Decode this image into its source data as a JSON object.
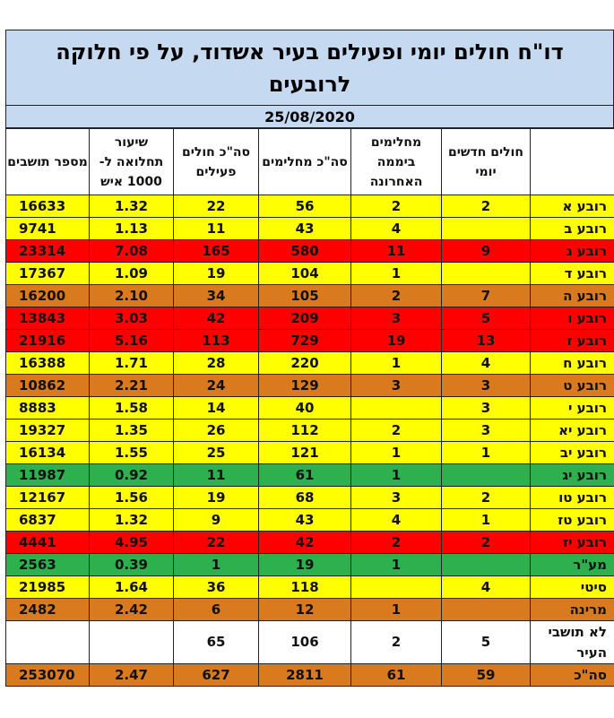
{
  "report": {
    "title": "דו\"ח חולים יומי ופעילים בעיר אשדוד, על פי חלוקה לרובעים",
    "date": "25/08/2020"
  },
  "columns": [
    "",
    "חולים חדשים יומי",
    "מחלימים ביממה האחרונה",
    "סה\"כ מחלימים",
    "סה\"כ חולים פעילים",
    "שיעור תחלואה ל- 1000 איש",
    "מספר תושבים"
  ],
  "rows": [
    {
      "area": "רובע א",
      "new": "2",
      "recovered_day": "2",
      "recovered_total": "56",
      "active": "22",
      "rate": "1.32",
      "residents": "16633",
      "color": "yellow"
    },
    {
      "area": "רובע ב",
      "new": "",
      "recovered_day": "4",
      "recovered_total": "43",
      "active": "11",
      "rate": "1.13",
      "residents": "9741",
      "color": "yellow"
    },
    {
      "area": "רובע ג",
      "new": "9",
      "recovered_day": "11",
      "recovered_total": "580",
      "active": "165",
      "rate": "7.08",
      "residents": "23314",
      "color": "red"
    },
    {
      "area": "רובע ד",
      "new": "",
      "recovered_day": "1",
      "recovered_total": "104",
      "active": "19",
      "rate": "1.09",
      "residents": "17367",
      "color": "yellow"
    },
    {
      "area": "רובע ה",
      "new": "7",
      "recovered_day": "2",
      "recovered_total": "105",
      "active": "34",
      "rate": "2.10",
      "residents": "16200",
      "color": "orange"
    },
    {
      "area": "רובע ו",
      "new": "5",
      "recovered_day": "3",
      "recovered_total": "209",
      "active": "42",
      "rate": "3.03",
      "residents": "13843",
      "color": "red"
    },
    {
      "area": "רובע ז",
      "new": "13",
      "recovered_day": "19",
      "recovered_total": "729",
      "active": "113",
      "rate": "5.16",
      "residents": "21916",
      "color": "red"
    },
    {
      "area": "רובע ח",
      "new": "4",
      "recovered_day": "1",
      "recovered_total": "220",
      "active": "28",
      "rate": "1.71",
      "residents": "16388",
      "color": "yellow"
    },
    {
      "area": "רובע ט",
      "new": "3",
      "recovered_day": "3",
      "recovered_total": "129",
      "active": "24",
      "rate": "2.21",
      "residents": "10862",
      "color": "orange"
    },
    {
      "area": "רובע י",
      "new": "3",
      "recovered_day": "",
      "recovered_total": "40",
      "active": "14",
      "rate": "1.58",
      "residents": "8883",
      "color": "yellow"
    },
    {
      "area": "רובע יא",
      "new": "3",
      "recovered_day": "2",
      "recovered_total": "112",
      "active": "26",
      "rate": "1.35",
      "residents": "19327",
      "color": "yellow"
    },
    {
      "area": "רובע יב",
      "new": "1",
      "recovered_day": "1",
      "recovered_total": "121",
      "active": "25",
      "rate": "1.55",
      "residents": "16134",
      "color": "yellow"
    },
    {
      "area": "רובע יג",
      "new": "",
      "recovered_day": "1",
      "recovered_total": "61",
      "active": "11",
      "rate": "0.92",
      "residents": "11987",
      "color": "green"
    },
    {
      "area": "רובע טו",
      "new": "2",
      "recovered_day": "3",
      "recovered_total": "68",
      "active": "19",
      "rate": "1.56",
      "residents": "12167",
      "color": "yellow"
    },
    {
      "area": "רובע טז",
      "new": "1",
      "recovered_day": "4",
      "recovered_total": "43",
      "active": "9",
      "rate": "1.32",
      "residents": "6837",
      "color": "yellow"
    },
    {
      "area": "רובע יז",
      "new": "2",
      "recovered_day": "2",
      "recovered_total": "42",
      "active": "22",
      "rate": "4.95",
      "residents": "4441",
      "color": "red"
    },
    {
      "area": "מע\"ר",
      "new": "",
      "recovered_day": "1",
      "recovered_total": "19",
      "active": "1",
      "rate": "0.39",
      "residents": "2563",
      "color": "green"
    },
    {
      "area": "סיטי",
      "new": "4",
      "recovered_day": "",
      "recovered_total": "118",
      "active": "36",
      "rate": "1.64",
      "residents": "21985",
      "color": "yellow"
    },
    {
      "area": "מרינה",
      "new": "",
      "recovered_day": "1",
      "recovered_total": "12",
      "active": "6",
      "rate": "2.42",
      "residents": "2482",
      "color": "orange"
    },
    {
      "area": "לא תושבי העיר",
      "new": "5",
      "recovered_day": "2",
      "recovered_total": "106",
      "active": "65",
      "rate": "",
      "residents": "",
      "color": "white"
    },
    {
      "area": "סה\"כ",
      "new": "59",
      "recovered_day": "61",
      "recovered_total": "2811",
      "active": "627",
      "rate": "2.47",
      "residents": "253070",
      "color": "orange"
    }
  ],
  "colors": {
    "yellow": "#ffff00",
    "red": "#ff0000",
    "orange": "#d97a1f",
    "green": "#2eb04f",
    "header_blue": "#c5d9f1"
  }
}
